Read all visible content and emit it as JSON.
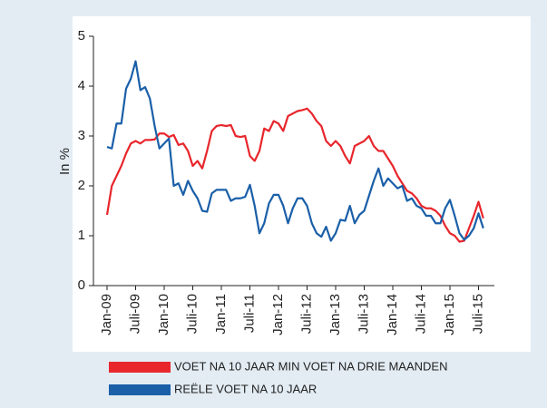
{
  "chart_data": {
    "type": "line",
    "ylabel": "In %",
    "categories": [
      "Jan-09",
      null,
      null,
      null,
      null,
      null,
      "Juli-09",
      null,
      null,
      null,
      null,
      null,
      "Jan-10",
      null,
      null,
      null,
      null,
      null,
      "Juli-10",
      null,
      null,
      null,
      null,
      null,
      "Jan-11",
      null,
      null,
      null,
      null,
      null,
      "Juli-11",
      null,
      null,
      null,
      null,
      null,
      "Jan-12",
      null,
      null,
      null,
      null,
      null,
      "Juli-12",
      null,
      null,
      null,
      null,
      null,
      "Jan-13",
      null,
      null,
      null,
      null,
      null,
      "Juli-13",
      null,
      null,
      null,
      null,
      null,
      "Jan-14",
      null,
      null,
      null,
      null,
      null,
      "Juli-14",
      null,
      null,
      null,
      null,
      null,
      "Jan-15",
      null,
      null,
      null,
      null,
      null,
      "Juli-15",
      null
    ],
    "series": [
      {
        "name": "VOET NA 10 JAAR MIN VOET NA DRIE MAANDEN",
        "color": "#e8262c",
        "values": [
          1.42,
          2.0,
          2.2,
          2.4,
          2.65,
          2.85,
          2.9,
          2.85,
          2.92,
          2.92,
          2.93,
          3.05,
          3.05,
          2.98,
          3.02,
          2.82,
          2.85,
          2.7,
          2.4,
          2.5,
          2.35,
          2.7,
          3.1,
          3.2,
          3.22,
          3.2,
          3.22,
          3.0,
          2.98,
          3.0,
          2.6,
          2.5,
          2.7,
          3.15,
          3.1,
          3.3,
          3.25,
          3.1,
          3.4,
          3.45,
          3.5,
          3.52,
          3.55,
          3.45,
          3.3,
          3.2,
          2.9,
          2.8,
          2.9,
          2.8,
          2.6,
          2.45,
          2.8,
          2.85,
          2.9,
          3.0,
          2.8,
          2.7,
          2.7,
          2.55,
          2.4,
          2.2,
          2.05,
          1.9,
          1.85,
          1.75,
          1.6,
          1.55,
          1.55,
          1.5,
          1.4,
          1.2,
          1.05,
          1.0,
          0.88,
          0.9,
          1.15,
          1.4,
          1.68,
          1.35
        ]
      },
      {
        "name": "REËLE VOET NA 10 JAAR",
        "color": "#1a5fa8",
        "values": [
          2.78,
          2.75,
          3.25,
          3.25,
          3.95,
          4.15,
          4.5,
          3.92,
          3.98,
          3.75,
          3.2,
          2.75,
          2.85,
          2.95,
          2.0,
          2.05,
          1.82,
          2.1,
          1.9,
          1.75,
          1.5,
          1.48,
          1.85,
          1.92,
          1.92,
          1.92,
          1.7,
          1.75,
          1.75,
          1.78,
          2.02,
          1.6,
          1.05,
          1.25,
          1.65,
          1.82,
          1.82,
          1.6,
          1.25,
          1.55,
          1.75,
          1.75,
          1.6,
          1.25,
          1.05,
          0.98,
          1.18,
          0.9,
          1.05,
          1.32,
          1.3,
          1.6,
          1.25,
          1.42,
          1.5,
          1.8,
          2.1,
          2.35,
          2.0,
          2.15,
          2.05,
          1.95,
          2.0,
          1.7,
          1.75,
          1.6,
          1.55,
          1.4,
          1.4,
          1.25,
          1.25,
          1.55,
          1.72,
          1.4,
          1.05,
          0.92,
          1.0,
          1.15,
          1.45,
          1.15
        ]
      }
    ],
    "ylim": [
      0,
      5
    ],
    "yticks": [
      0,
      1,
      2,
      3,
      4,
      5
    ],
    "grid": false
  }
}
